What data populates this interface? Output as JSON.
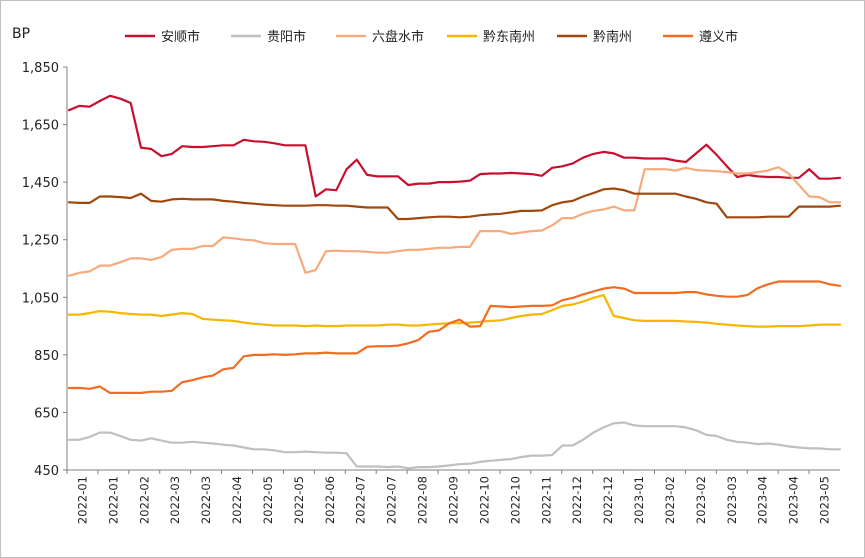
{
  "chart_data": {
    "type": "line",
    "ylabel": "BP",
    "ylim": [
      450,
      1850
    ],
    "yticks": [
      450,
      650,
      850,
      1050,
      1250,
      1450,
      1650,
      1850
    ],
    "ytick_labels": [
      "450",
      "650",
      "850",
      "1,050",
      "1,250",
      "1,450",
      "1,650",
      "1,850"
    ],
    "xticks": [
      "2022-01",
      "2022-01",
      "2022-02",
      "2022-03",
      "2022-03",
      "2022-04",
      "2022-05",
      "2022-05",
      "2022-06",
      "2022-07",
      "2022-07",
      "2022-08",
      "2022-09",
      "2022-10",
      "2022-10",
      "2022-11",
      "2022-12",
      "2022-12",
      "2023-01",
      "2023-02",
      "2023-02",
      "2023-03",
      "2023-04",
      "2023-04",
      "2023-05"
    ],
    "legend_position": "top",
    "grid": false,
    "series": [
      {
        "name": "安顺市",
        "color": "#c8102e",
        "values": [
          1700,
          1715,
          1712,
          1732,
          1750,
          1740,
          1725,
          1570,
          1565,
          1540,
          1548,
          1575,
          1572,
          1572,
          1575,
          1578,
          1578,
          1597,
          1592,
          1590,
          1585,
          1578,
          1578,
          1578,
          1400,
          1425,
          1422,
          1495,
          1528,
          1475,
          1470,
          1470,
          1470,
          1440,
          1445,
          1445,
          1450,
          1450,
          1452,
          1455,
          1478,
          1480,
          1480,
          1482,
          1480,
          1478,
          1472,
          1500,
          1505,
          1515,
          1535,
          1548,
          1555,
          1550,
          1535,
          1535,
          1532,
          1532,
          1532,
          1525,
          1520,
          1550,
          1580,
          1545,
          1505,
          1468,
          1475,
          1470,
          1468,
          1468,
          1465,
          1465,
          1495,
          1462,
          1462,
          1465
        ]
      },
      {
        "name": "贵阳市",
        "color": "#bfbfbf",
        "values": [
          555,
          555,
          565,
          580,
          580,
          568,
          555,
          552,
          560,
          552,
          545,
          545,
          548,
          545,
          542,
          538,
          535,
          528,
          522,
          522,
          518,
          512,
          512,
          514,
          512,
          510,
          510,
          508,
          462,
          462,
          462,
          460,
          462,
          456,
          460,
          460,
          462,
          466,
          470,
          472,
          478,
          482,
          485,
          488,
          495,
          500,
          500,
          502,
          535,
          535,
          555,
          580,
          598,
          612,
          615,
          605,
          602,
          602,
          602,
          602,
          598,
          588,
          572,
          568,
          555,
          548,
          545,
          540,
          542,
          538,
          532,
          528,
          525,
          525,
          522,
          522
        ]
      },
      {
        "name": "六盘水市",
        "color": "#f8a97c",
        "values": [
          1125,
          1135,
          1140,
          1160,
          1160,
          1172,
          1185,
          1185,
          1180,
          1190,
          1215,
          1218,
          1218,
          1228,
          1228,
          1258,
          1255,
          1250,
          1248,
          1238,
          1235,
          1235,
          1235,
          1135,
          1145,
          1210,
          1212,
          1210,
          1210,
          1208,
          1205,
          1205,
          1210,
          1215,
          1215,
          1218,
          1222,
          1222,
          1225,
          1225,
          1280,
          1280,
          1280,
          1270,
          1275,
          1280,
          1282,
          1300,
          1325,
          1325,
          1340,
          1350,
          1355,
          1365,
          1352,
          1352,
          1495,
          1495,
          1495,
          1490,
          1500,
          1492,
          1490,
          1488,
          1485,
          1480,
          1480,
          1485,
          1490,
          1502,
          1480,
          1440,
          1400,
          1398,
          1380,
          1380
        ]
      },
      {
        "name": "黔东南州",
        "color": "#f7b500",
        "values": [
          990,
          990,
          995,
          1002,
          1000,
          995,
          992,
          990,
          990,
          985,
          990,
          995,
          992,
          975,
          972,
          970,
          968,
          962,
          958,
          955,
          952,
          952,
          952,
          950,
          952,
          950,
          950,
          952,
          952,
          952,
          952,
          955,
          955,
          952,
          952,
          955,
          958,
          960,
          960,
          962,
          965,
          968,
          970,
          978,
          985,
          990,
          992,
          1005,
          1020,
          1025,
          1035,
          1048,
          1058,
          985,
          978,
          970,
          968,
          968,
          968,
          968,
          966,
          965,
          962,
          958,
          955,
          952,
          950,
          948,
          948,
          950,
          950,
          950,
          952,
          955,
          955,
          955
        ]
      },
      {
        "name": "黔南州",
        "color": "#9e480e",
        "values": [
          1380,
          1378,
          1378,
          1400,
          1400,
          1398,
          1395,
          1410,
          1385,
          1382,
          1390,
          1392,
          1390,
          1390,
          1390,
          1385,
          1382,
          1378,
          1375,
          1372,
          1370,
          1368,
          1368,
          1368,
          1370,
          1370,
          1368,
          1368,
          1365,
          1362,
          1362,
          1362,
          1322,
          1322,
          1325,
          1328,
          1330,
          1330,
          1328,
          1330,
          1335,
          1338,
          1340,
          1345,
          1350,
          1350,
          1352,
          1370,
          1380,
          1385,
          1400,
          1412,
          1425,
          1428,
          1422,
          1410,
          1410,
          1410,
          1410,
          1410,
          1400,
          1392,
          1380,
          1375,
          1328,
          1328,
          1328,
          1328,
          1330,
          1330,
          1330,
          1365,
          1365,
          1365,
          1365,
          1368
        ]
      },
      {
        "name": "遵义市",
        "color": "#f26b21",
        "values": [
          735,
          735,
          732,
          740,
          718,
          718,
          718,
          718,
          722,
          722,
          725,
          755,
          762,
          772,
          778,
          800,
          805,
          845,
          850,
          850,
          852,
          850,
          852,
          855,
          855,
          858,
          855,
          855,
          855,
          878,
          880,
          880,
          882,
          890,
          902,
          930,
          935,
          960,
          972,
          948,
          950,
          1020,
          1018,
          1016,
          1018,
          1020,
          1020,
          1022,
          1040,
          1048,
          1060,
          1070,
          1080,
          1085,
          1080,
          1065,
          1065,
          1065,
          1065,
          1065,
          1068,
          1068,
          1060,
          1055,
          1052,
          1052,
          1058,
          1082,
          1095,
          1105,
          1105,
          1105,
          1105,
          1105,
          1095,
          1090
        ]
      }
    ]
  }
}
